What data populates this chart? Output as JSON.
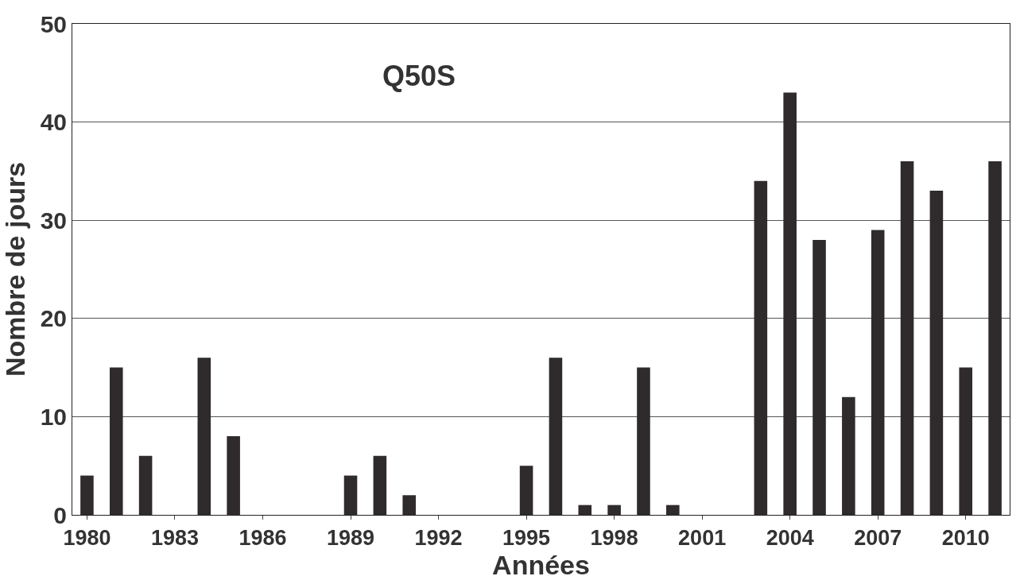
{
  "chart_data": {
    "type": "bar",
    "title": "Q50S",
    "xlabel": "Années",
    "ylabel": "Nombre de jours",
    "x": [
      1980,
      1981,
      1982,
      1983,
      1984,
      1985,
      1986,
      1987,
      1988,
      1989,
      1990,
      1991,
      1992,
      1993,
      1994,
      1995,
      1996,
      1997,
      1998,
      1999,
      2000,
      2001,
      2002,
      2003,
      2004,
      2005,
      2006,
      2007,
      2008,
      2009,
      2010,
      2011
    ],
    "values": [
      4,
      15,
      6,
      0,
      16,
      8,
      0,
      0,
      0,
      4,
      6,
      2,
      0,
      0,
      0,
      5,
      16,
      1,
      1,
      15,
      1,
      0,
      0,
      34,
      43,
      28,
      12,
      29,
      36,
      33,
      15,
      36
    ],
    "color": "#2f2b2c",
    "xlim": [
      1979.5,
      2011.5
    ],
    "xticks": [
      1980,
      1983,
      1986,
      1989,
      1992,
      1995,
      1998,
      2001,
      2004,
      2007,
      2010
    ],
    "ylim": [
      0,
      50
    ],
    "yticks": [
      0,
      10,
      20,
      30,
      40,
      50
    ],
    "grid": "y",
    "legend": false
  }
}
